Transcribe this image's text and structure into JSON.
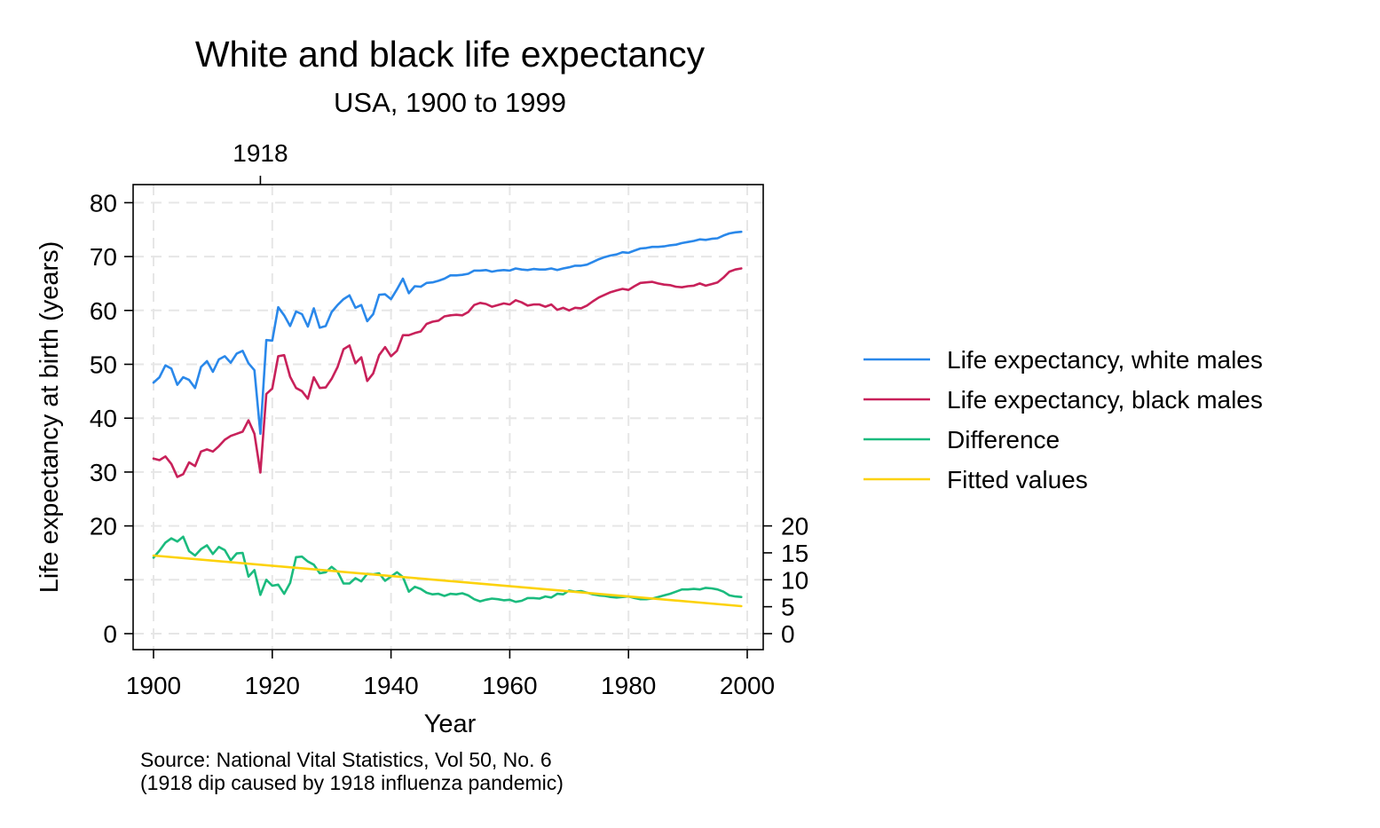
{
  "chart_data": {
    "type": "line",
    "title": "White and black life expectancy",
    "subtitle": "USA, 1900 to 1999",
    "xlabel": "Year",
    "ylabel": "Life expectancy at birth (years)",
    "xlim": [
      1900,
      2000
    ],
    "x_ticks": [
      1900,
      1920,
      1940,
      1960,
      1980,
      2000
    ],
    "ylim": [
      0,
      80
    ],
    "y_ticks": [
      0,
      10,
      20,
      30,
      40,
      50,
      60,
      70,
      80
    ],
    "y_tick_labels": [
      "0",
      "",
      "20",
      "30",
      "40",
      "50",
      "60",
      "70",
      "80"
    ],
    "y2_ticks": [
      0,
      5,
      10,
      15,
      20
    ],
    "top_axis_ticks": [
      1918
    ],
    "grid": true,
    "legend_position": "right",
    "note_lines": [
      "Source: National Vital Statistics, Vol 50, No. 6",
      "(1918 dip caused by 1918 influenza pandemic)"
    ],
    "series": [
      {
        "name": "Life expectancy, white males",
        "color": "#2a88ea",
        "x": [
          1900,
          1901,
          1902,
          1903,
          1904,
          1905,
          1906,
          1907,
          1908,
          1909,
          1910,
          1911,
          1912,
          1913,
          1914,
          1915,
          1916,
          1917,
          1918,
          1919,
          1920,
          1921,
          1922,
          1923,
          1924,
          1925,
          1926,
          1927,
          1928,
          1929,
          1930,
          1931,
          1932,
          1933,
          1934,
          1935,
          1936,
          1937,
          1938,
          1939,
          1940,
          1941,
          1942,
          1943,
          1944,
          1945,
          1946,
          1947,
          1948,
          1949,
          1950,
          1951,
          1952,
          1953,
          1954,
          1955,
          1956,
          1957,
          1958,
          1959,
          1960,
          1961,
          1962,
          1963,
          1964,
          1965,
          1966,
          1967,
          1968,
          1969,
          1970,
          1971,
          1972,
          1973,
          1974,
          1975,
          1976,
          1977,
          1978,
          1979,
          1980,
          1981,
          1982,
          1983,
          1984,
          1985,
          1986,
          1987,
          1988,
          1989,
          1990,
          1991,
          1992,
          1993,
          1994,
          1995,
          1996,
          1997,
          1998,
          1999
        ],
        "values": [
          46.6,
          47.6,
          49.8,
          49.2,
          46.2,
          47.6,
          47.1,
          45.6,
          49.5,
          50.6,
          48.6,
          50.9,
          51.5,
          50.3,
          52.0,
          52.5,
          50.2,
          48.9,
          37.1,
          54.5,
          54.4,
          60.6,
          59.1,
          57.1,
          59.8,
          59.3,
          57.0,
          60.4,
          56.8,
          57.1,
          59.7,
          61.0,
          62.1,
          62.8,
          60.5,
          61.0,
          58.0,
          59.3,
          62.9,
          63.0,
          62.1,
          63.9,
          65.9,
          63.2,
          64.5,
          64.4,
          65.1,
          65.2,
          65.5,
          65.9,
          66.5,
          66.5,
          66.6,
          66.8,
          67.4,
          67.4,
          67.5,
          67.2,
          67.4,
          67.5,
          67.4,
          67.8,
          67.6,
          67.5,
          67.7,
          67.6,
          67.6,
          67.8,
          67.5,
          67.8,
          68.0,
          68.3,
          68.3,
          68.5,
          69.0,
          69.5,
          69.9,
          70.2,
          70.4,
          70.8,
          70.7,
          71.1,
          71.5,
          71.6,
          71.8,
          71.8,
          71.9,
          72.1,
          72.2,
          72.5,
          72.7,
          72.9,
          73.2,
          73.1,
          73.3,
          73.4,
          73.9,
          74.3,
          74.5,
          74.6
        ]
      },
      {
        "name": "Life expectancy, black males",
        "color": "#c8215a",
        "x": [
          1900,
          1901,
          1902,
          1903,
          1904,
          1905,
          1906,
          1907,
          1908,
          1909,
          1910,
          1911,
          1912,
          1913,
          1914,
          1915,
          1916,
          1917,
          1918,
          1919,
          1920,
          1921,
          1922,
          1923,
          1924,
          1925,
          1926,
          1927,
          1928,
          1929,
          1930,
          1931,
          1932,
          1933,
          1934,
          1935,
          1936,
          1937,
          1938,
          1939,
          1940,
          1941,
          1942,
          1943,
          1944,
          1945,
          1946,
          1947,
          1948,
          1949,
          1950,
          1951,
          1952,
          1953,
          1954,
          1955,
          1956,
          1957,
          1958,
          1959,
          1960,
          1961,
          1962,
          1963,
          1964,
          1965,
          1966,
          1967,
          1968,
          1969,
          1970,
          1971,
          1972,
          1973,
          1974,
          1975,
          1976,
          1977,
          1978,
          1979,
          1980,
          1981,
          1982,
          1983,
          1984,
          1985,
          1986,
          1987,
          1988,
          1989,
          1990,
          1991,
          1992,
          1993,
          1994,
          1995,
          1996,
          1997,
          1998,
          1999
        ],
        "values": [
          32.5,
          32.2,
          32.9,
          31.5,
          29.1,
          29.6,
          31.8,
          31.1,
          33.8,
          34.2,
          33.8,
          34.8,
          36.0,
          36.7,
          37.1,
          37.5,
          39.6,
          37.1,
          29.9,
          44.5,
          45.5,
          51.5,
          51.7,
          47.7,
          45.6,
          45.0,
          43.6,
          47.6,
          45.6,
          45.7,
          47.3,
          49.5,
          52.8,
          53.5,
          50.2,
          51.3,
          46.9,
          48.3,
          51.7,
          53.2,
          51.5,
          52.5,
          55.4,
          55.4,
          55.8,
          56.1,
          57.5,
          57.9,
          58.1,
          58.9,
          59.1,
          59.2,
          59.1,
          59.7,
          61.0,
          61.4,
          61.2,
          60.7,
          61.0,
          61.3,
          61.1,
          61.9,
          61.5,
          60.9,
          61.1,
          61.1,
          60.7,
          61.1,
          60.1,
          60.5,
          60.0,
          60.5,
          60.4,
          60.9,
          61.7,
          62.4,
          62.9,
          63.4,
          63.7,
          64.0,
          63.8,
          64.5,
          65.1,
          65.2,
          65.3,
          65.0,
          64.8,
          64.7,
          64.4,
          64.3,
          64.5,
          64.6,
          65.0,
          64.6,
          64.9,
          65.2,
          66.1,
          67.2,
          67.6,
          67.8
        ]
      },
      {
        "name": "Difference",
        "color": "#1bbb7e",
        "x": [
          1900,
          1901,
          1902,
          1903,
          1904,
          1905,
          1906,
          1907,
          1908,
          1909,
          1910,
          1911,
          1912,
          1913,
          1914,
          1915,
          1916,
          1917,
          1918,
          1919,
          1920,
          1921,
          1922,
          1923,
          1924,
          1925,
          1926,
          1927,
          1928,
          1929,
          1930,
          1931,
          1932,
          1933,
          1934,
          1935,
          1936,
          1937,
          1938,
          1939,
          1940,
          1941,
          1942,
          1943,
          1944,
          1945,
          1946,
          1947,
          1948,
          1949,
          1950,
          1951,
          1952,
          1953,
          1954,
          1955,
          1956,
          1957,
          1958,
          1959,
          1960,
          1961,
          1962,
          1963,
          1964,
          1965,
          1966,
          1967,
          1968,
          1969,
          1970,
          1971,
          1972,
          1973,
          1974,
          1975,
          1976,
          1977,
          1978,
          1979,
          1980,
          1981,
          1982,
          1983,
          1984,
          1985,
          1986,
          1987,
          1988,
          1989,
          1990,
          1991,
          1992,
          1993,
          1994,
          1995,
          1996,
          1997,
          1998,
          1999
        ],
        "values": [
          14.1,
          15.4,
          16.9,
          17.7,
          17.1,
          18.0,
          15.3,
          14.5,
          15.7,
          16.4,
          14.8,
          16.1,
          15.5,
          13.6,
          14.9,
          15.0,
          10.6,
          11.8,
          7.2,
          10.0,
          8.9,
          9.1,
          7.4,
          9.4,
          14.2,
          14.3,
          13.4,
          12.8,
          11.2,
          11.4,
          12.4,
          11.5,
          9.3,
          9.3,
          10.3,
          9.7,
          11.1,
          11.0,
          11.2,
          9.8,
          10.6,
          11.4,
          10.5,
          7.8,
          8.7,
          8.3,
          7.6,
          7.3,
          7.4,
          7.0,
          7.4,
          7.3,
          7.5,
          7.1,
          6.4,
          6.0,
          6.3,
          6.5,
          6.4,
          6.2,
          6.3,
          5.9,
          6.1,
          6.6,
          6.6,
          6.5,
          6.9,
          6.7,
          7.4,
          7.3,
          8.0,
          7.8,
          7.9,
          7.6,
          7.3,
          7.1,
          7.0,
          6.8,
          6.7,
          6.8,
          6.9,
          6.6,
          6.4,
          6.4,
          6.5,
          6.8,
          7.1,
          7.4,
          7.8,
          8.2,
          8.2,
          8.3,
          8.2,
          8.5,
          8.4,
          8.2,
          7.8,
          7.1,
          6.9,
          6.8
        ]
      },
      {
        "name": "Fitted values",
        "color": "#fcd20b",
        "x": [
          1900,
          1999
        ],
        "values": [
          14.5,
          5.1
        ]
      }
    ]
  }
}
